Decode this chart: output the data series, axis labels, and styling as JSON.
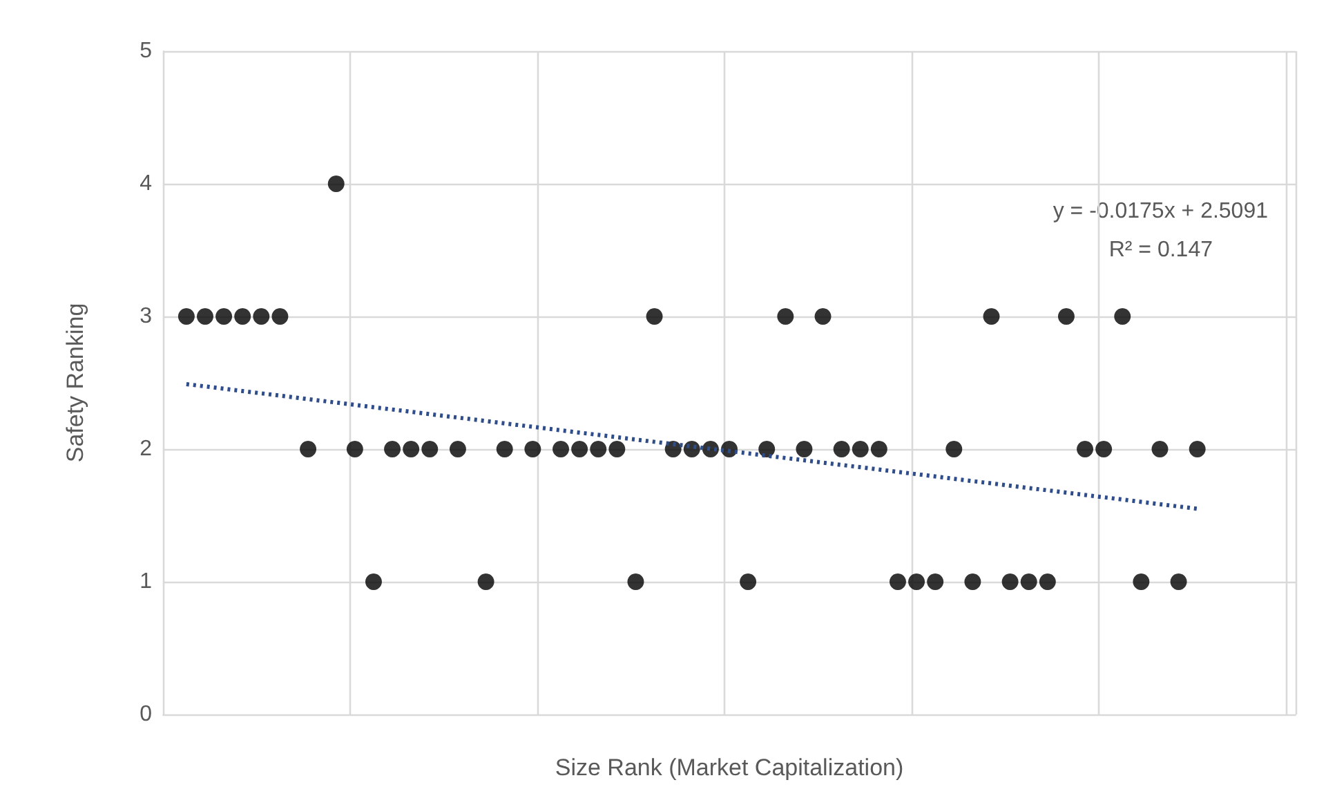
{
  "chart_data": {
    "type": "scatter",
    "xlabel": "Size Rank (Market Capitalization)",
    "ylabel": "Safety Ranking",
    "categories": [
      null,
      null,
      null,
      null,
      null,
      null,
      null,
      null,
      null,
      null,
      null,
      null,
      null,
      null,
      null,
      null,
      null,
      null,
      null,
      null,
      null,
      null,
      null,
      null,
      null,
      null,
      null,
      null,
      null,
      null,
      null,
      null,
      null,
      null,
      null,
      null,
      null,
      null,
      null,
      null,
      null,
      null,
      null,
      null,
      null,
      null,
      null,
      null,
      null,
      null,
      null,
      null,
      null,
      null,
      null,
      null,
      null,
      null,
      null,
      null,
      null,
      null,
      null,
      null,
      null,
      null,
      null,
      null,
      null,
      null,
      null,
      null,
      null,
      null,
      null,
      null,
      null,
      null,
      null,
      null,
      null,
      null,
      null,
      null,
      null,
      null,
      null,
      null,
      null,
      null,
      null,
      null,
      null,
      null,
      null,
      null,
      null,
      null,
      null,
      null,
      null,
      null,
      null,
      null,
      null,
      null,
      null,
      null,
      null,
      null,
      null,
      null,
      null,
      null,
      null,
      null,
      null,
      null,
      null,
      null,
      null
    ],
    "series": [
      {
        "color": "#000000",
        "marker": "circle",
        "values": [
          null,
          null,
          3,
          null,
          3,
          null,
          3,
          null,
          3,
          null,
          3,
          null,
          3,
          null,
          null,
          2,
          null,
          null,
          4,
          null,
          2,
          null,
          1,
          null,
          2,
          null,
          2,
          null,
          2,
          null,
          null,
          2,
          null,
          null,
          1,
          null,
          2,
          null,
          null,
          2,
          null,
          null,
          2,
          null,
          2,
          null,
          2,
          null,
          2,
          null,
          1,
          null,
          3,
          null,
          2,
          null,
          2,
          null,
          2,
          null,
          2,
          null,
          1,
          null,
          2,
          null,
          3,
          null,
          2,
          null,
          3,
          null,
          2,
          null,
          2,
          null,
          2,
          null,
          1,
          null,
          1,
          null,
          1,
          null,
          2,
          null,
          1,
          null,
          3,
          null,
          1,
          null,
          1,
          null,
          1,
          null,
          3,
          null,
          2,
          null,
          2,
          null,
          3,
          null,
          1,
          null,
          2,
          null,
          1,
          null,
          2,
          null,
          null,
          null,
          null,
          null,
          null,
          null,
          null,
          null,
          null
        ]
      },
      {
        "type": "line",
        "color": "#2e4d8a",
        "line_style": "dotted",
        "marker": "none",
        "values": [
          null,
          null,
          2.49,
          null,
          null,
          null,
          null,
          null,
          null,
          null,
          null,
          null,
          null,
          null,
          null,
          null,
          null,
          null,
          null,
          null,
          null,
          null,
          null,
          null,
          null,
          null,
          null,
          null,
          null,
          null,
          null,
          null,
          null,
          null,
          null,
          null,
          null,
          null,
          null,
          null,
          null,
          null,
          null,
          null,
          null,
          null,
          null,
          null,
          null,
          null,
          null,
          null,
          null,
          null,
          null,
          null,
          null,
          null,
          null,
          null,
          null,
          null,
          null,
          null,
          null,
          null,
          null,
          null,
          null,
          null,
          null,
          null,
          null,
          null,
          null,
          null,
          null,
          null,
          null,
          null,
          null,
          null,
          null,
          null,
          null,
          null,
          null,
          null,
          null,
          null,
          null,
          null,
          null,
          null,
          null,
          null,
          null,
          null,
          null,
          null,
          null,
          null,
          null,
          null,
          null,
          null,
          null,
          null,
          null,
          null,
          1.55,
          null,
          null,
          null,
          null,
          null,
          null,
          null,
          null,
          null,
          null
        ]
      }
    ],
    "annotations": [
      "y = -0.0175x + 2.5091",
      "R² = 0.147"
    ],
    "ylim": [
      0,
      5
    ],
    "yticks": [
      0,
      1,
      2,
      3,
      4,
      5
    ],
    "grid": true,
    "tick_labels": "y"
  }
}
